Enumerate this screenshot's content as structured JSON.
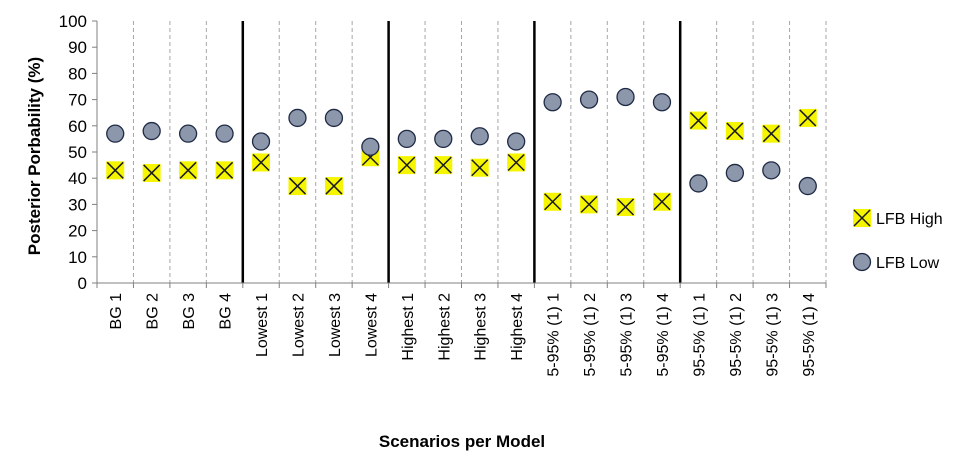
{
  "chart_data": {
    "type": "scatter",
    "title": "",
    "xlabel": "Scenarios per Model",
    "ylabel": "Posterior Porbability (%)",
    "ylim": [
      0,
      100
    ],
    "y_ticks": [
      0,
      10,
      20,
      30,
      40,
      50,
      60,
      70,
      80,
      90,
      100
    ],
    "grid": "vertical dashed between categories",
    "legend_position": "right",
    "categories": [
      "BG 1",
      "BG 2",
      "BG 3",
      "BG 4",
      "Lowest 1",
      "Lowest 2",
      "Lowest 3",
      "Lowest 4",
      "Highest 1",
      "Highest 2",
      "Highest 3",
      "Highest 4",
      "5-95% (1) 1",
      "5-95% (1) 2",
      "5-95% (1) 3",
      "5-95% (1) 4",
      "95-5% (1) 1",
      "95-5% (1) 2",
      "95-5% (1) 3",
      "95-5% (1) 4"
    ],
    "group_separators_after": [
      4,
      8,
      12,
      16
    ],
    "series": [
      {
        "name": "LFB High",
        "marker": "x-square",
        "color": "#f5f500",
        "values": [
          43,
          42,
          43,
          43,
          46,
          37,
          37,
          48,
          45,
          45,
          44,
          46,
          31,
          30,
          29,
          31,
          62,
          58,
          57,
          63
        ]
      },
      {
        "name": "LFB Low",
        "marker": "circle",
        "color": "#8c97ac",
        "values": [
          57,
          58,
          57,
          57,
          54,
          63,
          63,
          52,
          55,
          55,
          56,
          54,
          69,
          70,
          71,
          69,
          38,
          42,
          43,
          37
        ]
      }
    ]
  }
}
